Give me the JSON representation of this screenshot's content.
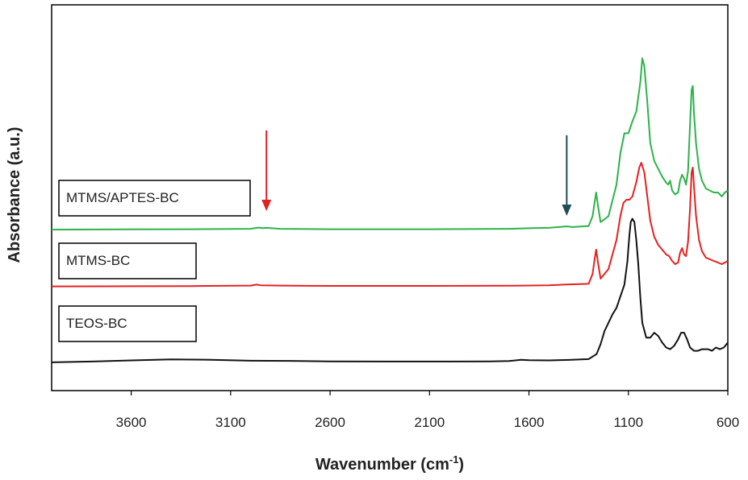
{
  "chart_data": {
    "type": "line",
    "title": "",
    "xlabel": "Wavenumber (cm",
    "xlabel_superscript": "-1",
    "xlabel_suffix": ")",
    "ylabel": "Absorbance (a.u.)",
    "x_reversed": true,
    "xlim": [
      4000,
      600
    ],
    "x_ticks": [
      3600,
      3100,
      2600,
      2100,
      1600,
      1100,
      600
    ],
    "y_ticks_shown": false,
    "grid": false,
    "series": [
      {
        "name": "MTMS/APTES-BC",
        "color": "#2db34a",
        "points": [
          [
            4000,
            1.2
          ],
          [
            3600,
            1.3
          ],
          [
            3300,
            1.4
          ],
          [
            3000,
            1.6
          ],
          [
            2960,
            2.2
          ],
          [
            2940,
            1.9
          ],
          [
            2920,
            2.1
          ],
          [
            2850,
            1.6
          ],
          [
            2600,
            1.4
          ],
          [
            2100,
            1.4
          ],
          [
            1700,
            1.6
          ],
          [
            1580,
            1.9
          ],
          [
            1500,
            2.1
          ],
          [
            1410,
            2.8
          ],
          [
            1380,
            2.5
          ],
          [
            1300,
            3.0
          ],
          [
            1280,
            8
          ],
          [
            1270,
            15
          ],
          [
            1262,
            20
          ],
          [
            1254,
            14
          ],
          [
            1240,
            5
          ],
          [
            1200,
            8
          ],
          [
            1160,
            24
          ],
          [
            1140,
            40
          ],
          [
            1120,
            50
          ],
          [
            1100,
            50
          ],
          [
            1080,
            56
          ],
          [
            1060,
            61
          ],
          [
            1040,
            76
          ],
          [
            1030,
            88
          ],
          [
            1020,
            84
          ],
          [
            1005,
            66
          ],
          [
            990,
            45
          ],
          [
            970,
            36
          ],
          [
            950,
            32
          ],
          [
            930,
            28
          ],
          [
            910,
            25
          ],
          [
            900,
            24
          ],
          [
            890,
            26
          ],
          [
            880,
            21
          ],
          [
            865,
            19
          ],
          [
            850,
            20
          ],
          [
            840,
            26
          ],
          [
            830,
            29
          ],
          [
            820,
            27
          ],
          [
            810,
            24
          ],
          [
            800,
            31
          ],
          [
            790,
            55
          ],
          [
            782,
            72
          ],
          [
            776,
            74
          ],
          [
            770,
            60
          ],
          [
            760,
            45
          ],
          [
            745,
            32
          ],
          [
            730,
            26
          ],
          [
            710,
            22
          ],
          [
            690,
            21
          ],
          [
            670,
            20
          ],
          [
            650,
            20
          ],
          [
            630,
            18
          ],
          [
            615,
            20
          ],
          [
            600,
            21
          ]
        ]
      },
      {
        "name": "MTMS-BC",
        "color": "#e62020",
        "points": [
          [
            4000,
            1.2
          ],
          [
            3600,
            1.3
          ],
          [
            3300,
            1.4
          ],
          [
            3000,
            1.7
          ],
          [
            2970,
            2.3
          ],
          [
            2950,
            1.9
          ],
          [
            2850,
            1.7
          ],
          [
            2600,
            1.5
          ],
          [
            2100,
            1.5
          ],
          [
            1700,
            1.6
          ],
          [
            1500,
            1.9
          ],
          [
            1410,
            2.4
          ],
          [
            1300,
            2.8
          ],
          [
            1280,
            9
          ],
          [
            1270,
            18
          ],
          [
            1262,
            24
          ],
          [
            1254,
            17
          ],
          [
            1240,
            6
          ],
          [
            1200,
            12
          ],
          [
            1160,
            30
          ],
          [
            1140,
            45
          ],
          [
            1125,
            53
          ],
          [
            1110,
            55
          ],
          [
            1095,
            55
          ],
          [
            1080,
            57
          ],
          [
            1060,
            66
          ],
          [
            1045,
            75
          ],
          [
            1035,
            78
          ],
          [
            1020,
            72
          ],
          [
            1005,
            57
          ],
          [
            990,
            42
          ],
          [
            970,
            32
          ],
          [
            950,
            27
          ],
          [
            930,
            24
          ],
          [
            910,
            21
          ],
          [
            895,
            20
          ],
          [
            880,
            17
          ],
          [
            865,
            15
          ],
          [
            850,
            16
          ],
          [
            840,
            22
          ],
          [
            830,
            25
          ],
          [
            820,
            21
          ],
          [
            810,
            20
          ],
          [
            800,
            29
          ],
          [
            790,
            50
          ],
          [
            782,
            72
          ],
          [
            776,
            75
          ],
          [
            770,
            63
          ],
          [
            760,
            45
          ],
          [
            745,
            30
          ],
          [
            730,
            23
          ],
          [
            710,
            19
          ],
          [
            690,
            18
          ],
          [
            670,
            17
          ],
          [
            650,
            16
          ],
          [
            630,
            15
          ],
          [
            615,
            16
          ],
          [
            600,
            17
          ]
        ]
      },
      {
        "name": "TEOS-BC",
        "color": "#111111",
        "points": [
          [
            4000,
            1
          ],
          [
            3800,
            1.5
          ],
          [
            3600,
            2.2
          ],
          [
            3400,
            2.8
          ],
          [
            3200,
            2.6
          ],
          [
            3000,
            2.0
          ],
          [
            2800,
            1.9
          ],
          [
            2600,
            1.6
          ],
          [
            2300,
            1.5
          ],
          [
            2000,
            1.5
          ],
          [
            1800,
            1.6
          ],
          [
            1700,
            1.8
          ],
          [
            1640,
            2.6
          ],
          [
            1600,
            2.3
          ],
          [
            1500,
            2.2
          ],
          [
            1400,
            2.5
          ],
          [
            1300,
            3.0
          ],
          [
            1260,
            6
          ],
          [
            1240,
            12
          ],
          [
            1220,
            20
          ],
          [
            1200,
            25
          ],
          [
            1180,
            30
          ],
          [
            1160,
            34
          ],
          [
            1140,
            41
          ],
          [
            1120,
            48
          ],
          [
            1105,
            62
          ],
          [
            1095,
            78
          ],
          [
            1088,
            86
          ],
          [
            1080,
            88
          ],
          [
            1070,
            86
          ],
          [
            1060,
            75
          ],
          [
            1050,
            60
          ],
          [
            1040,
            40
          ],
          [
            1030,
            25
          ],
          [
            1010,
            16
          ],
          [
            990,
            16
          ],
          [
            970,
            19
          ],
          [
            950,
            17
          ],
          [
            930,
            13
          ],
          [
            910,
            10
          ],
          [
            890,
            9
          ],
          [
            870,
            11
          ],
          [
            850,
            15
          ],
          [
            835,
            19
          ],
          [
            820,
            19
          ],
          [
            805,
            15
          ],
          [
            790,
            10
          ],
          [
            770,
            8
          ],
          [
            750,
            8
          ],
          [
            730,
            9
          ],
          [
            700,
            9
          ],
          [
            680,
            8
          ],
          [
            660,
            10
          ],
          [
            640,
            9
          ],
          [
            620,
            10
          ],
          [
            600,
            13
          ]
        ]
      }
    ],
    "annotations": [
      {
        "type": "arrow-down",
        "x": 2920,
        "color": "#e62020"
      },
      {
        "type": "arrow-down",
        "x": 1410,
        "color": "#1f4e5a"
      }
    ]
  }
}
